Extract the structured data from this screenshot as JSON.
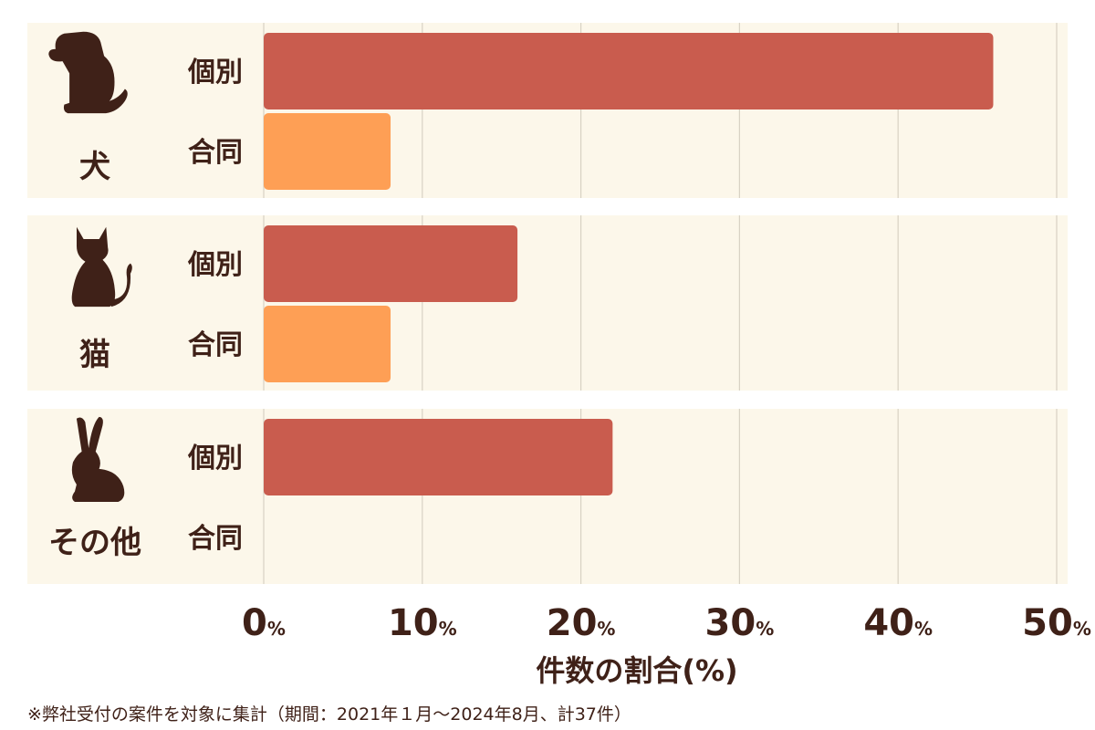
{
  "chart_data": {
    "type": "bar",
    "orientation": "horizontal",
    "groups": [
      {
        "label": "犬",
        "icon": "dog-icon"
      },
      {
        "label": "猫",
        "icon": "cat-icon"
      },
      {
        "label": "その他",
        "icon": "rabbit-icon"
      }
    ],
    "row_labels": [
      "個別",
      "合同"
    ],
    "series": [
      {
        "name": "個別",
        "color": "#c95c4e",
        "values": [
          46,
          16,
          22
        ]
      },
      {
        "name": "合同",
        "color": "#fe9f55",
        "values": [
          8,
          8,
          0
        ]
      }
    ],
    "xlim": [
      0,
      50
    ],
    "xticks": [
      "0",
      "10",
      "20",
      "30",
      "40",
      "50"
    ],
    "tick_unit": "%",
    "xlabel": "件数の割合(%)",
    "grid": true,
    "background_color": "#fcf7ea"
  },
  "footnote": "※弊社受付の案件を対象に集計（期間：2021年１月〜2024年8月、計37件）"
}
